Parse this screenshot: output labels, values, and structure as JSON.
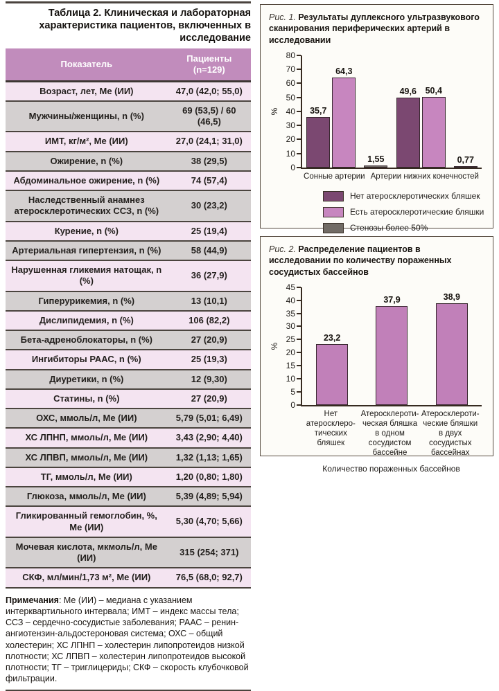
{
  "table": {
    "title": "Таблица 2. Клиническая и лабораторная характеристика пациентов, включенных в исследование",
    "columns": [
      "Показатель",
      "Пациенты (n=129)"
    ],
    "rows": [
      [
        "Возраст, лет, Ме (ИИ)",
        "47,0 (42,0; 55,0)"
      ],
      [
        "Мужчины/женщины, n (%)",
        "69 (53,5) / 60 (46,5)"
      ],
      [
        "ИМТ, кг/м², Ме (ИИ)",
        "27,0 (24,1; 31,0)"
      ],
      [
        "Ожирение, n (%)",
        "38 (29,5)"
      ],
      [
        "Абдоминальное ожирение, n (%)",
        "74 (57,4)"
      ],
      [
        "Наследственный анамнез атеросклеротических ССЗ, n (%)",
        "30 (23,2)"
      ],
      [
        "Курение, n (%)",
        "25 (19,4)"
      ],
      [
        "Артериальная гипертензия, n (%)",
        "58 (44,9)"
      ],
      [
        "Нарушенная гликемия натощак, n (%)",
        "36 (27,9)"
      ],
      [
        "Гиперурикемия, n (%)",
        "13 (10,1)"
      ],
      [
        "Дислипидемия, n (%)",
        "106 (82,2)"
      ],
      [
        "Бета-адреноблокаторы, n (%)",
        "27 (20,9)"
      ],
      [
        "Ингибиторы РААС, n (%)",
        "25 (19,3)"
      ],
      [
        "Диуретики, n (%)",
        "12 (9,30)"
      ],
      [
        "Статины, n (%)",
        "27 (20,9)"
      ],
      [
        "ОХС, ммоль/л, Ме (ИИ)",
        "5,79 (5,01; 6,49)"
      ],
      [
        "ХС ЛПНП, ммоль/л, Ме (ИИ)",
        "3,43 (2,90; 4,40)"
      ],
      [
        "ХС ЛПВП, ммоль/л, Ме (ИИ)",
        "1,32 (1,13; 1,65)"
      ],
      [
        "ТГ, ммоль/л, Ме (ИИ)",
        "1,20 (0,80; 1,80)"
      ],
      [
        "Глюкоза, ммоль/л, Ме (ИИ)",
        "5,39 (4,89; 5,94)"
      ],
      [
        "Гликированный гемоглобин, %, Ме (ИИ)",
        "5,30 (4,70; 5,66)"
      ],
      [
        "Мочевая кислота, мкмоль/л, Ме (ИИ)",
        "315 (254; 371)"
      ],
      [
        "СКФ, мл/мин/1,73 м², Ме (ИИ)",
        "76,5 (68,0; 92,7)"
      ]
    ],
    "notes_label": "Примечания",
    "notes_text": ": Ме (ИИ) – медиана с указанием интерквартильного интервала; ИМТ – индекс массы тела; ССЗ – сердечно-сосудистые заболевания; РААС – ренин-ангиотензин-альдостероновая система; ОХС – общий холестерин; ХС ЛПНП – холестерин липопротеидов низкой плотности; ХС ЛПВП – холестерин липопротеидов высокой плотности; ТГ – триглицериды; СКФ – скорость клубочковой фильтрации."
  },
  "colors": {
    "table_header_bg": "#c18cbc",
    "row_pink": "#f4e4f1",
    "row_gray": "#d4d0d0",
    "bar_dark_purple": "#7b4871",
    "bar_light_purple": "#c786bf",
    "bar_gray": "#716b65",
    "fig2_bar_purple": "#c180b9",
    "axis": "#362a20"
  },
  "chart_data": [
    {
      "type": "bar",
      "fig_label": "Рис. 1.",
      "title": "Результаты дуплексного ультразвукового сканирования периферических артерий в исследовании",
      "ylabel": "%",
      "ylim": [
        0,
        80
      ],
      "ytick_step": 10,
      "grid": false,
      "legend": true,
      "legend_position": "bottom",
      "categories": [
        "Сонные артерии",
        "Артерии нижних конечностей"
      ],
      "series": [
        {
          "name": "Нет атеросклеротических бляшек",
          "color": "#7b4871",
          "values": [
            35.7,
            49.6
          ],
          "value_labels": [
            "35,7",
            "49,6"
          ]
        },
        {
          "name": "Есть атеросклеротические бляшки",
          "color": "#c786bf",
          "values": [
            64.3,
            50.4
          ],
          "value_labels": [
            "64,3",
            "50,4"
          ]
        },
        {
          "name": "Стенозы более 50%",
          "color": "#716b65",
          "values": [
            1.55,
            0.77
          ],
          "value_labels": [
            "1,55",
            "0,77"
          ]
        }
      ]
    },
    {
      "type": "bar",
      "fig_label": "Рис. 2.",
      "title": "Распределение пациентов в исследовании по количеству пораженных сосудистых бассейнов",
      "ylabel": "%",
      "xlabel": "Количество пораженных бассейнов",
      "ylim": [
        0,
        45
      ],
      "ytick_step": 5,
      "grid": false,
      "legend": false,
      "categories": [
        [
          "Нет атеросклеро-",
          "тических бляшек"
        ],
        [
          "Атеросклероти-",
          "ческая бляшка",
          "в одном",
          "сосудистом",
          "бассейне"
        ],
        [
          "Атеросклероти-",
          "ческие бляшки",
          "в двух сосудистых",
          "бассейнах"
        ]
      ],
      "series": [
        {
          "color": "#c180b9",
          "values": [
            23.2,
            37.9,
            38.9
          ],
          "value_labels": [
            "23,2",
            "37,9",
            "38,9"
          ]
        }
      ]
    }
  ]
}
